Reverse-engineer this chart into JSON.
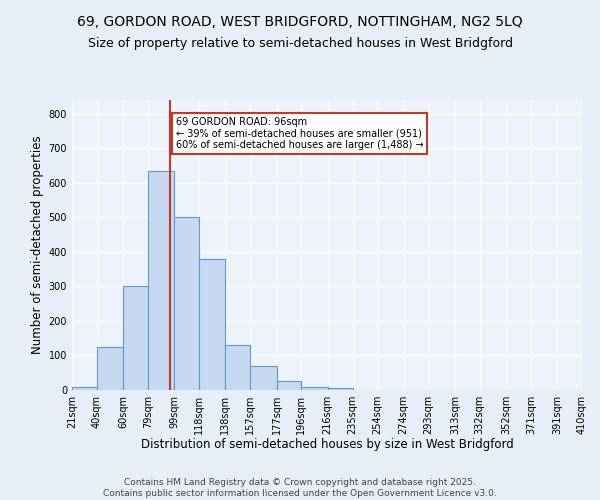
{
  "title1": "69, GORDON ROAD, WEST BRIDGFORD, NOTTINGHAM, NG2 5LQ",
  "title2": "Size of property relative to semi-detached houses in West Bridgford",
  "xlabel": "Distribution of semi-detached houses by size in West Bridgford",
  "ylabel": "Number of semi-detached properties",
  "footnote": "Contains HM Land Registry data © Crown copyright and database right 2025.\nContains public sector information licensed under the Open Government Licence v3.0.",
  "bin_labels": [
    "21sqm",
    "40sqm",
    "60sqm",
    "79sqm",
    "99sqm",
    "118sqm",
    "138sqm",
    "157sqm",
    "177sqm",
    "196sqm",
    "216sqm",
    "235sqm",
    "254sqm",
    "274sqm",
    "293sqm",
    "313sqm",
    "332sqm",
    "352sqm",
    "371sqm",
    "391sqm",
    "410sqm"
  ],
  "bin_edges": [
    21,
    40,
    60,
    79,
    99,
    118,
    138,
    157,
    177,
    196,
    216,
    235,
    254,
    274,
    293,
    313,
    332,
    352,
    371,
    391,
    410
  ],
  "bar_heights": [
    10,
    125,
    300,
    635,
    500,
    380,
    130,
    70,
    25,
    10,
    5,
    0,
    0,
    0,
    0,
    0,
    0,
    0,
    0,
    0
  ],
  "bar_color": "#c6d9f0",
  "bar_edge_color": "#5b9bd5",
  "vline_x": 96,
  "vline_color": "#c0392b",
  "annotation_text": "69 GORDON ROAD: 96sqm\n← 39% of semi-detached houses are smaller (951)\n60% of semi-detached houses are larger (1,488) →",
  "annotation_box_color": "#c0392b",
  "annotation_bg": "white",
  "ylim": [
    0,
    840
  ],
  "yticks": [
    0,
    100,
    200,
    300,
    400,
    500,
    600,
    700,
    800
  ],
  "background_color": "#e8eef8",
  "plot_bg_color": "#eef2fa",
  "grid_color": "white",
  "title_fontsize": 10,
  "subtitle_fontsize": 9,
  "axis_label_fontsize": 8.5,
  "tick_fontsize": 7,
  "footnote_fontsize": 6.5
}
